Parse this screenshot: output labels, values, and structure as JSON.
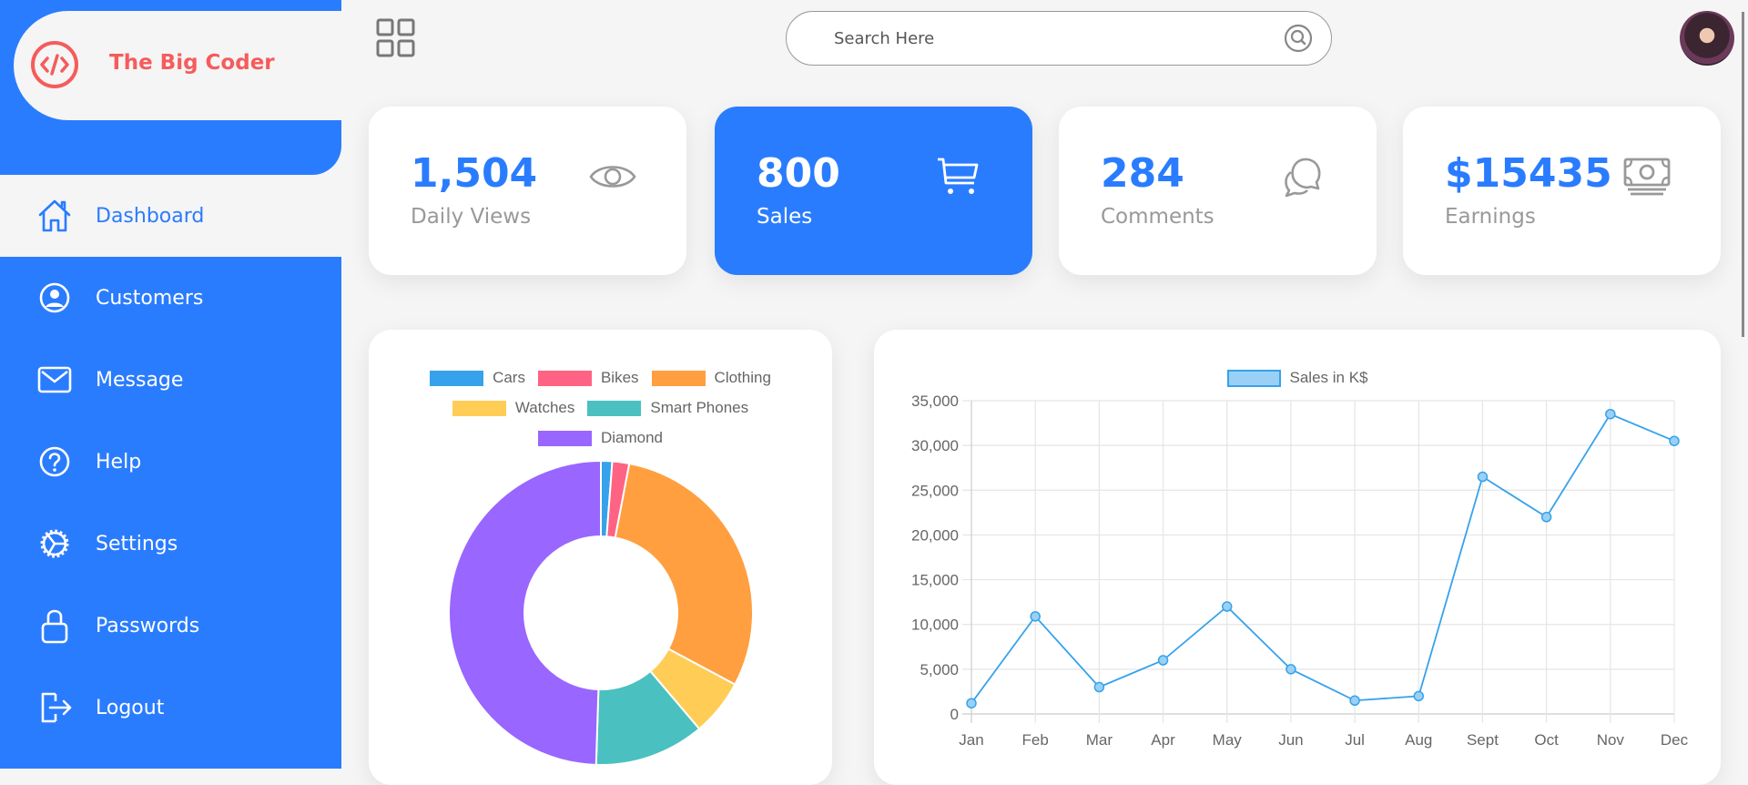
{
  "brand": {
    "name": "The Big Coder",
    "color": "#f55c5c"
  },
  "colors": {
    "primary": "#2a7cfe",
    "background": "#f5f5f5",
    "muted": "#999999"
  },
  "sidebar": {
    "items": [
      {
        "label": "Dashboard",
        "icon": "home-icon",
        "active": true
      },
      {
        "label": "Customers",
        "icon": "user-circle-icon"
      },
      {
        "label": "Message",
        "icon": "mail-icon"
      },
      {
        "label": "Help",
        "icon": "help-circle-icon"
      },
      {
        "label": "Settings",
        "icon": "gear-icon"
      },
      {
        "label": "Passwords",
        "icon": "lock-icon"
      },
      {
        "label": "Logout",
        "icon": "logout-icon"
      }
    ]
  },
  "topbar": {
    "menu_icon": "grid-icon",
    "search_placeholder": "Search Here",
    "search_icon": "search-icon",
    "avatar": "user-avatar"
  },
  "cards": [
    {
      "value": "1,504",
      "label": "Daily Views",
      "icon": "eye-icon"
    },
    {
      "value": "800",
      "label": "Sales",
      "icon": "cart-icon",
      "highlighted": true
    },
    {
      "value": "284",
      "label": "Comments",
      "icon": "chat-icon"
    },
    {
      "value": "$15435",
      "label": "Earnings",
      "icon": "money-icon"
    }
  ],
  "chart_data": [
    {
      "type": "pie",
      "subtype": "doughnut",
      "title": "",
      "categories": [
        "Cars",
        "Bikes",
        "Clothing",
        "Watches",
        "Smart Phones",
        "Diamond"
      ],
      "values": [
        1.2,
        1.8,
        29.8,
        6.0,
        11.7,
        49.5
      ],
      "colors": [
        "#36a2eb",
        "#ff6384",
        "#ff9f40",
        "#ffcd56",
        "#4bc0c0",
        "#9966ff"
      ],
      "legend_position": "top"
    },
    {
      "type": "line",
      "title": "",
      "categories": [
        "Jan",
        "Feb",
        "Mar",
        "Apr",
        "May",
        "Jun",
        "Jul",
        "Aug",
        "Sept",
        "Oct",
        "Nov",
        "Dec"
      ],
      "series": [
        {
          "name": "Sales in K$",
          "values": [
            1200,
            10900,
            3000,
            6000,
            12000,
            5000,
            1500,
            2000,
            26500,
            22000,
            33500,
            30500
          ],
          "color": "#36a2eb"
        }
      ],
      "yticks": [
        "0",
        "5,000",
        "10,000",
        "15,000",
        "20,000",
        "25,000",
        "30,000",
        "35,000"
      ],
      "ylim": [
        0,
        35000
      ],
      "xlabel": "",
      "ylabel": "",
      "grid": true,
      "legend_position": "top"
    }
  ]
}
